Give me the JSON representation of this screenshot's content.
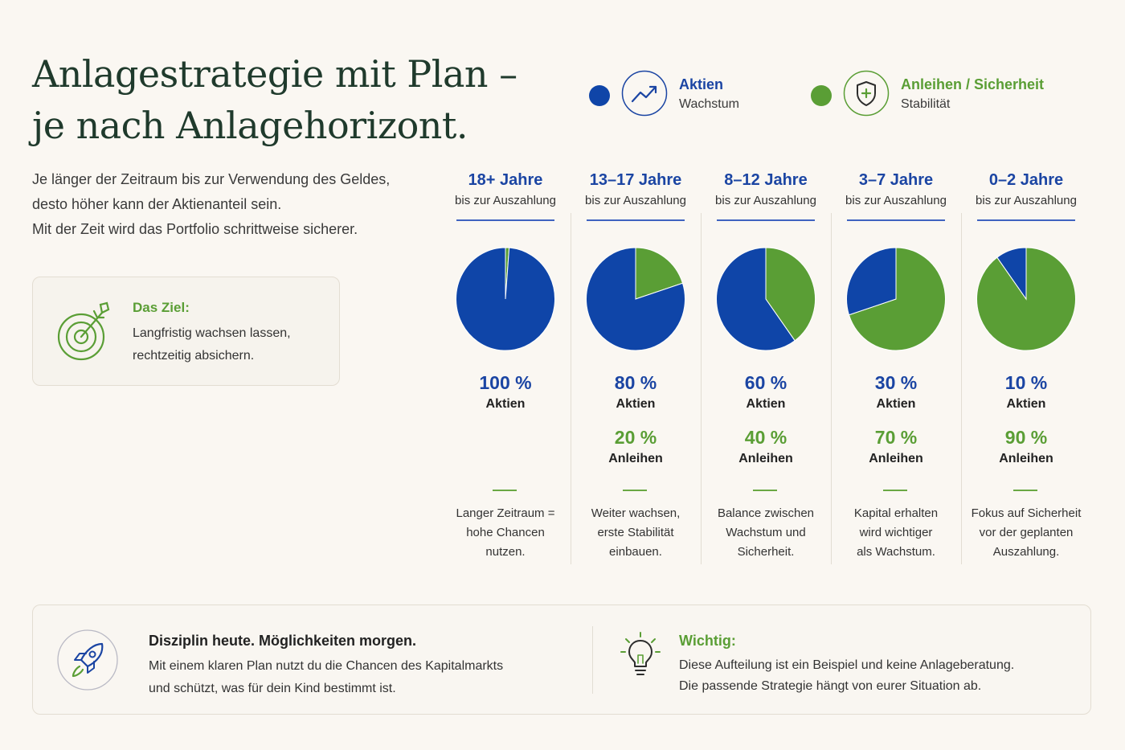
{
  "header": {
    "title_line1": "Anlagestrategie mit Plan –",
    "title_line2": "je nach Anlagehorizont.",
    "intro_line1": "Je länger der Zeitraum bis zur Verwendung des Geldes,",
    "intro_line2": "desto höher kann der Aktienanteil sein.",
    "intro_line3": "Mit der Zeit wird das Portfolio schrittweise sicherer."
  },
  "goal": {
    "icon": "target-icon",
    "title": "Das Ziel:",
    "line1": "Langfristig wachsen lassen,",
    "line2": "rechtzeitig absichern."
  },
  "legend": {
    "stocks": {
      "label": "Aktien",
      "sub": "Wachstum",
      "icon": "growth-chart-icon",
      "color": "#1b45a3"
    },
    "bonds": {
      "label": "Anleihen / Sicherheit",
      "sub": "Stabilität",
      "icon": "shield-icon",
      "color": "#5a9e35"
    }
  },
  "chart_data": {
    "type": "pie",
    "series_names": [
      "Aktien",
      "Anleihen"
    ],
    "colors": {
      "stocks": "#0f45a8",
      "bonds": "#5a9e35"
    },
    "charts": [
      {
        "years": "18+ Jahre",
        "subtitle": "bis zur Auszahlung",
        "stocks": 100,
        "bonds": 0,
        "stocks_label": "100 %",
        "stocks_name": "Aktien",
        "bonds_label": "",
        "bonds_name": "",
        "desc": [
          "Langer Zeitraum =",
          "hohe Chancen",
          "nutzen."
        ]
      },
      {
        "years": "13–17 Jahre",
        "subtitle": "bis zur Auszahlung",
        "stocks": 80,
        "bonds": 20,
        "stocks_label": "80 %",
        "stocks_name": "Aktien",
        "bonds_label": "20 %",
        "bonds_name": "Anleihen",
        "desc": [
          "Weiter wachsen,",
          "erste Stabilität",
          "einbauen."
        ]
      },
      {
        "years": "8–12 Jahre",
        "subtitle": "bis zur Auszahlung",
        "stocks": 60,
        "bonds": 40,
        "stocks_label": "60 %",
        "stocks_name": "Aktien",
        "bonds_label": "40 %",
        "bonds_name": "Anleihen",
        "desc": [
          "Balance zwischen",
          "Wachstum und",
          "Sicherheit."
        ]
      },
      {
        "years": "3–7 Jahre",
        "subtitle": "bis zur Auszahlung",
        "stocks": 30,
        "bonds": 70,
        "stocks_label": "30 %",
        "stocks_name": "Aktien",
        "bonds_label": "70 %",
        "bonds_name": "Anleihen",
        "desc": [
          "Kapital erhalten",
          "wird wichtiger",
          "als Wachstum."
        ]
      },
      {
        "years": "0–2 Jahre",
        "subtitle": "bis zur Auszahlung",
        "stocks": 10,
        "bonds": 90,
        "stocks_label": "10 %",
        "stocks_name": "Aktien",
        "bonds_label": "90 %",
        "bonds_name": "Anleihen",
        "desc": [
          "Fokus auf Sicherheit",
          "vor der geplanten",
          "Auszahlung."
        ]
      }
    ]
  },
  "footer": {
    "discipline": {
      "icon": "rocket-icon",
      "title": "Disziplin heute. Möglichkeiten morgen.",
      "line1": "Mit einem klaren Plan nutzt du die Chancen des Kapitalmarkts",
      "line2": "und schützt, was für dein Kind bestimmt ist."
    },
    "important": {
      "icon": "lightbulb-icon",
      "title": "Wichtig:",
      "line1": "Diese Aufteilung ist ein Beispiel und keine Anlageberatung.",
      "line2": "Die passende Strategie hängt von eurer Situation ab."
    }
  }
}
